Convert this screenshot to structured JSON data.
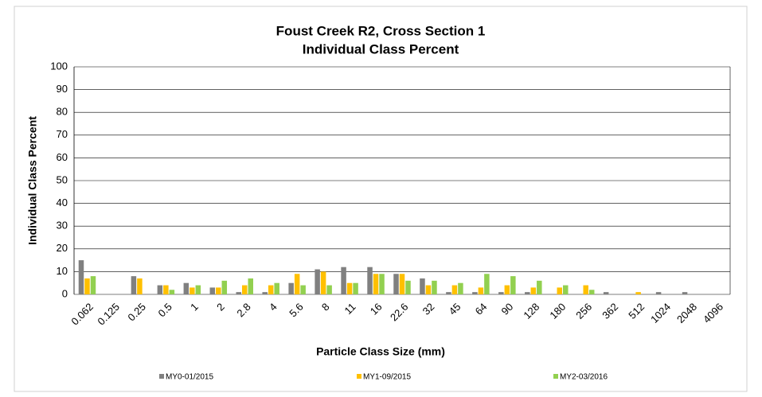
{
  "chart_data": {
    "type": "bar",
    "title": "Foust Creek R2, Cross Section 1",
    "subtitle": "Individual Class Percent",
    "x_label": "Particle Class Size (mm)",
    "y_label": "Individual Class Percent",
    "categories": [
      "0.062",
      "0.125",
      "0.25",
      "0.5",
      "1",
      "2",
      "2.8",
      "4",
      "5.6",
      "8",
      "11",
      "16",
      "22.6",
      "32",
      "45",
      "64",
      "90",
      "128",
      "180",
      "256",
      "362",
      "512",
      "1024",
      "2048",
      "4096"
    ],
    "series": [
      {
        "name": "MY0-01/2015",
        "color": "#808080",
        "values": [
          15,
          0,
          8,
          4,
          5,
          3,
          1,
          1,
          5,
          11,
          12,
          12,
          9,
          7,
          1,
          1,
          1,
          1,
          0,
          0,
          1,
          0,
          1,
          1,
          0
        ]
      },
      {
        "name": "MY1-09/2015",
        "color": "#ffc000",
        "values": [
          7,
          0,
          7,
          4,
          3,
          3,
          4,
          4,
          9,
          10,
          5,
          9,
          9,
          4,
          4,
          3,
          4,
          3,
          3,
          4,
          0,
          1,
          0,
          0,
          0
        ]
      },
      {
        "name": "MY2-03/2016",
        "color": "#92d050",
        "values": [
          8,
          0,
          0,
          2,
          4,
          6,
          7,
          5,
          4,
          4,
          5,
          9,
          6,
          6,
          5,
          9,
          8,
          6,
          4,
          2,
          0,
          0,
          0,
          0,
          0
        ]
      }
    ],
    "ylim": [
      0,
      100
    ],
    "yticks": [
      0,
      10,
      20,
      30,
      40,
      50,
      60,
      70,
      80,
      90,
      100
    ],
    "grid": true,
    "legend": "bottom"
  }
}
